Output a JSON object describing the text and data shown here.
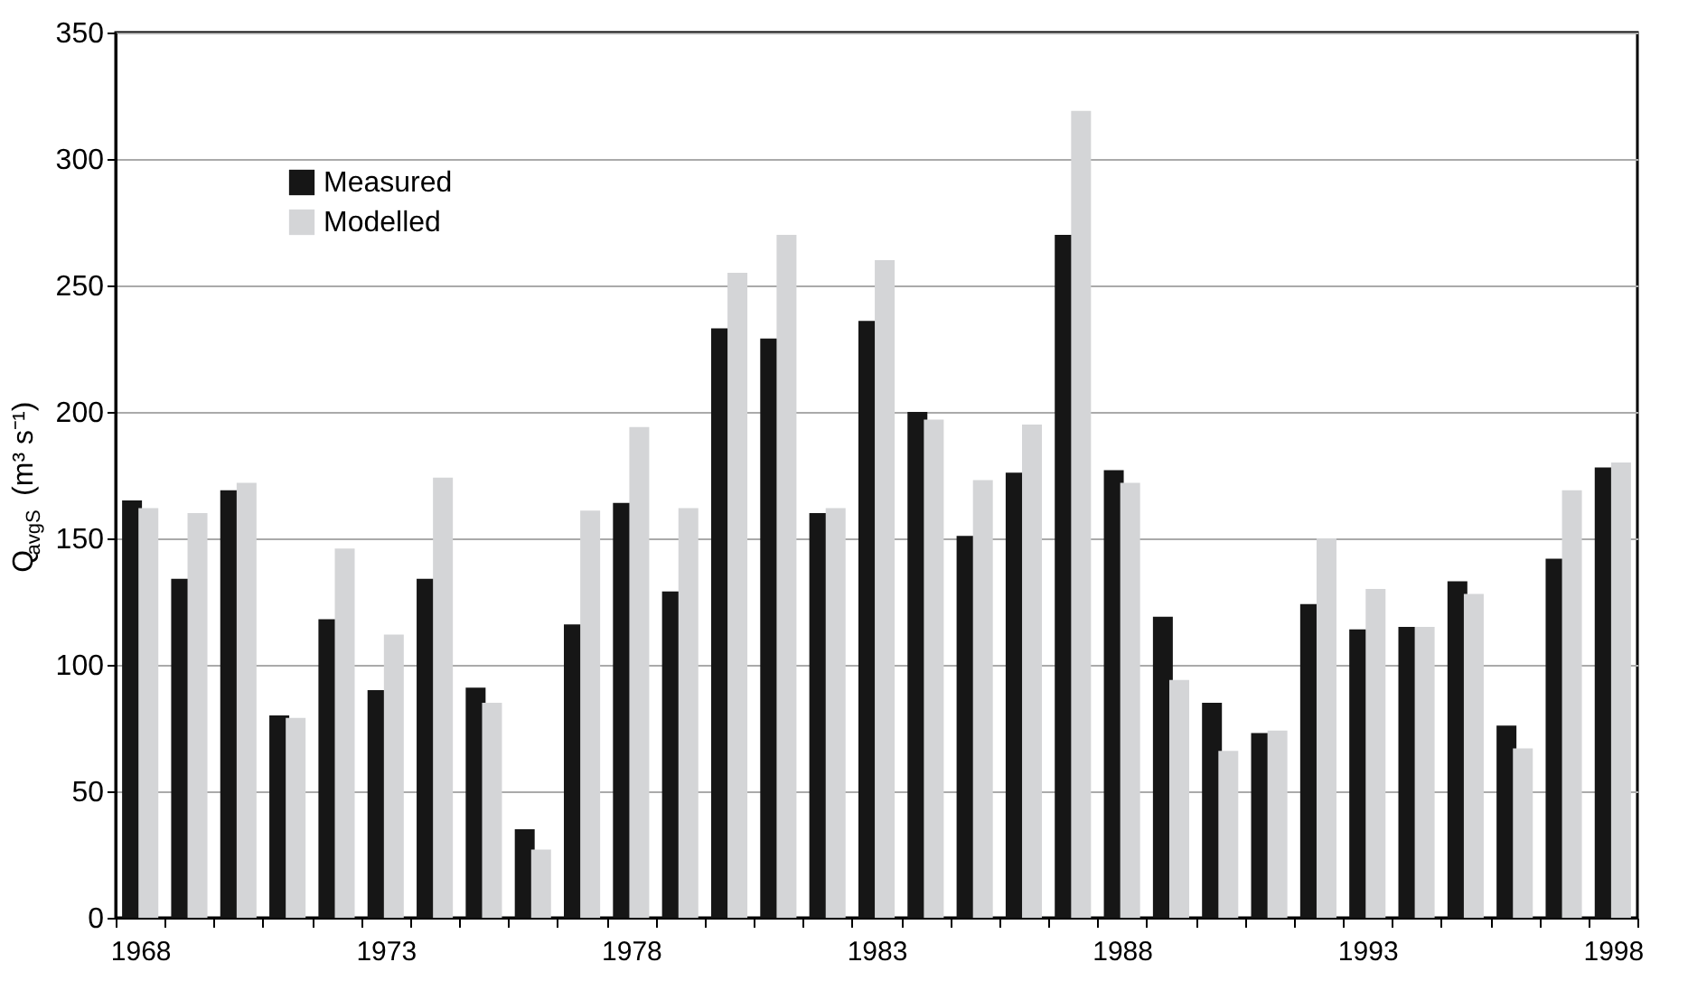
{
  "chart_data": {
    "type": "bar",
    "categories": [
      "1968",
      null,
      null,
      null,
      null,
      "1973",
      null,
      null,
      null,
      null,
      "1978",
      null,
      null,
      null,
      null,
      "1983",
      null,
      null,
      null,
      null,
      "1988",
      null,
      null,
      null,
      null,
      "1993",
      null,
      null,
      null,
      null,
      "1998"
    ],
    "ylabel": "Q$_{avgS}$ (m³ s⁻¹)",
    "series": [
      {
        "name": "Measured",
        "color": "#161616",
        "values": [
          165,
          134,
          169,
          80,
          118,
          90,
          134,
          91,
          35,
          116,
          164,
          129,
          233,
          229,
          160,
          236,
          200,
          151,
          176,
          270,
          177,
          119,
          85,
          73,
          124,
          114,
          115,
          133,
          76,
          142,
          178
        ]
      },
      {
        "name": "Modelled",
        "color": "#d4d5d7",
        "values": [
          162,
          160,
          172,
          79,
          146,
          112,
          174,
          85,
          27,
          161,
          194,
          162,
          255,
          270,
          162,
          260,
          197,
          173,
          195,
          319,
          172,
          94,
          66,
          74,
          150,
          130,
          115,
          128,
          67,
          169,
          180
        ]
      }
    ],
    "ylim": [
      0,
      350
    ],
    "yticks": [
      0,
      50,
      100,
      150,
      200,
      250,
      300,
      350
    ],
    "grid": "y",
    "legend": "top left"
  }
}
